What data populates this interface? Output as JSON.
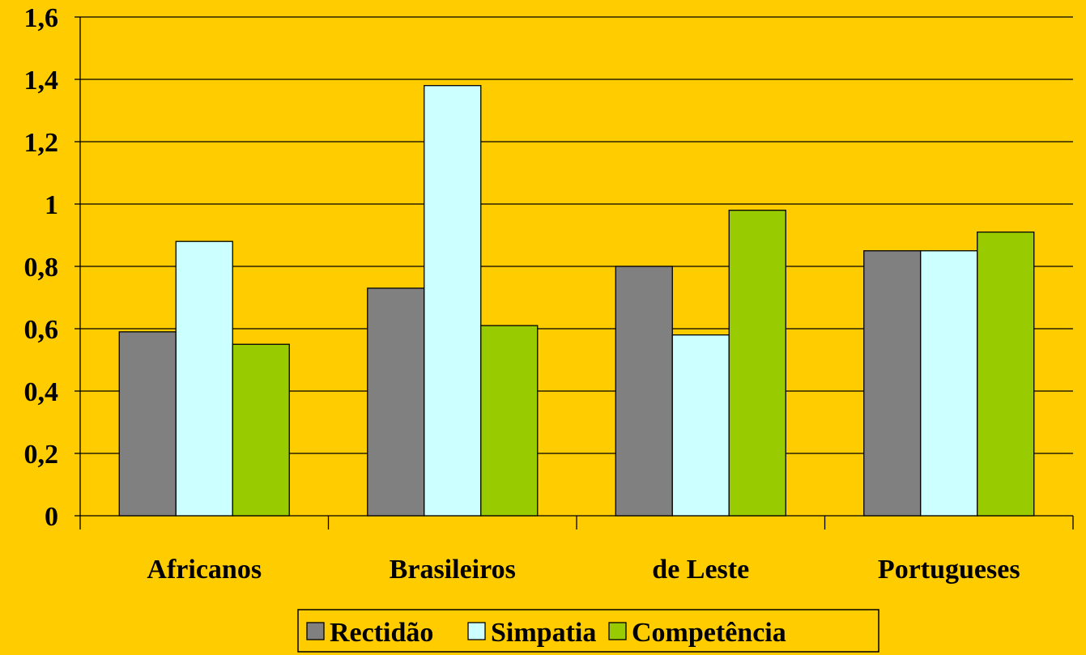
{
  "chart_data": {
    "type": "bar",
    "categories": [
      "Africanos",
      "Brasileiros",
      "de Leste",
      "Portugueses"
    ],
    "series": [
      {
        "name": "Rectidão",
        "values": [
          0.59,
          0.73,
          0.8,
          0.85
        ],
        "color": "#808080"
      },
      {
        "name": "Simpatia",
        "values": [
          0.88,
          1.38,
          0.58,
          0.85
        ],
        "color": "#CCFFFF"
      },
      {
        "name": "Competência",
        "values": [
          0.55,
          0.61,
          0.98,
          0.91
        ],
        "color": "#99CC00"
      }
    ],
    "ylim": [
      0,
      1.6
    ],
    "yticks": [
      0,
      0.2,
      0.4,
      0.6,
      0.8,
      1,
      1.2,
      1.4,
      1.6
    ],
    "ytick_labels": [
      "0",
      "0,2",
      "0,4",
      "0,6",
      "0,8",
      "1",
      "1,2",
      "1,4",
      "1,6"
    ],
    "grid": true,
    "legend_position": "bottom",
    "background_color": "#FFCC00",
    "title": "",
    "xlabel": "",
    "ylabel": ""
  }
}
